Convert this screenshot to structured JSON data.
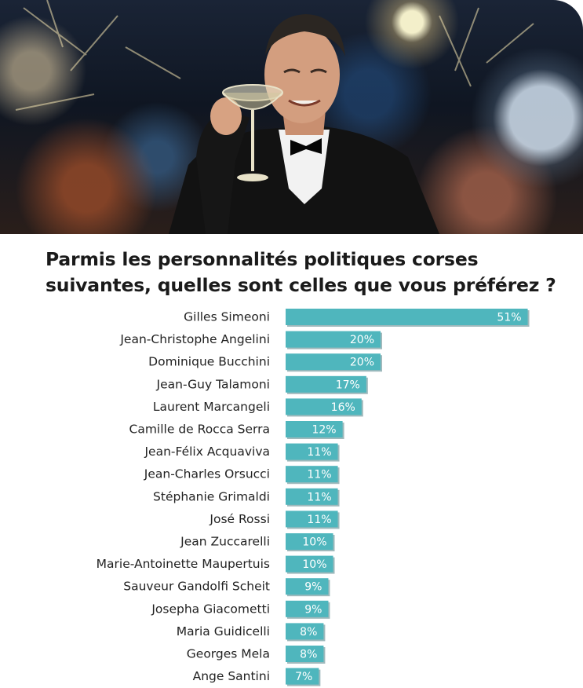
{
  "title_line1": "Parmis les personnalités politiques corses",
  "title_line2": "suivantes, quelles sont celles que vous préférez ?",
  "colors": {
    "bar": "#4fb6bd",
    "bar_shadow": "#9fb9bc"
  },
  "chart_data": {
    "type": "bar",
    "orientation": "horizontal",
    "categories": [
      "Gilles Simeoni",
      "Jean-Christophe Angelini",
      "Dominique Bucchini",
      "Jean-Guy Talamoni",
      "Laurent Marcangeli",
      "Camille de Rocca Serra",
      "Jean-Félix Acquaviva",
      "Jean-Charles Orsucci",
      "Stéphanie Grimaldi",
      "José Rossi",
      "Jean Zuccarelli",
      "Marie-Antoinette Maupertuis",
      "Sauveur Gandolfi Scheit",
      "Josepha Giacometti",
      "Maria Guidicelli",
      "Georges Mela",
      "Ange Santini"
    ],
    "values": [
      51,
      20,
      20,
      17,
      16,
      12,
      11,
      11,
      11,
      11,
      10,
      10,
      9,
      9,
      8,
      8,
      7
    ],
    "value_labels": [
      "51%",
      "20%",
      "20%",
      "17%",
      "16%",
      "12%",
      "11%",
      "11%",
      "11%",
      "11%",
      "10%",
      "10%",
      "9%",
      "9%",
      "8%",
      "8%",
      "7%"
    ],
    "unit": "%",
    "grid": false,
    "legend": false
  }
}
